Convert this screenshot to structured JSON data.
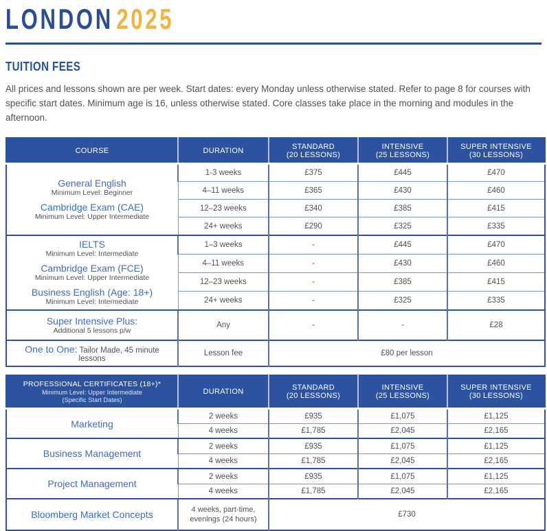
{
  "header": {
    "title_city": "LONDON",
    "title_year": "2025"
  },
  "section": {
    "title": "TUITION FEES",
    "intro": "All prices and lessons shown are per week. Start dates: every Monday unless otherwise stated. Refer to page 8 for courses with specific start dates. Minimum age is 16, unless otherwise stated. Core classes take place in the morning and modules in the afternoon."
  },
  "colors": {
    "navy": "#2d53a0",
    "gold": "#f2b43a",
    "course_blue": "#3c6cc8",
    "body_text": "#53555e"
  },
  "fees_table": {
    "columns": [
      {
        "line1": "COURSE"
      },
      {
        "line1": "DURATION"
      },
      {
        "line1": "STANDARD",
        "line2": "(20 LESSONS)"
      },
      {
        "line1": "INTENSIVE",
        "line2": "(25 LESSONS)"
      },
      {
        "line1": "SUPER INTENSIVE",
        "line2": "(30 LESSONS)"
      }
    ],
    "group1": {
      "courses": [
        {
          "name": "General English",
          "level": "Minimum Level: Beginner"
        },
        {
          "name": "Cambridge Exam (CAE)",
          "level": "Minimum Level: Upper Intermediate"
        }
      ],
      "rows": [
        {
          "duration": "1-3 weeks",
          "standard": "£375",
          "intensive": "£445",
          "super": "£470"
        },
        {
          "duration": "4–11 weeks",
          "standard": "£365",
          "intensive": "£430",
          "super": "£460"
        },
        {
          "duration": "12–23 weeks",
          "standard": "£340",
          "intensive": "£385",
          "super": "£415"
        },
        {
          "duration": "24+ weeks",
          "standard": "£290",
          "intensive": "£325",
          "super": "£335"
        }
      ]
    },
    "group2": {
      "courses": [
        {
          "name": "IELTS",
          "level": "Minimum Level: Intermediate"
        },
        {
          "name": "Cambridge Exam (FCE)",
          "level": "Minimum Level: Upper Intermediate"
        },
        {
          "name": "Business English (Age: 18+)",
          "level": "Minimum Level: Intermediate"
        }
      ],
      "rows": [
        {
          "duration": "1–3 weeks",
          "standard": "-",
          "intensive": "£445",
          "super": "£470"
        },
        {
          "duration": "4–11 weeks",
          "standard": "-",
          "intensive": "£430",
          "super": "£460"
        },
        {
          "duration": "12–23 weeks",
          "standard": "-",
          "intensive": "£385",
          "super": "£415"
        },
        {
          "duration": "24+ weeks",
          "standard": "-",
          "intensive": "£325",
          "super": "£335"
        }
      ]
    },
    "super_intensive_plus": {
      "name": "Super Intensive Plus:",
      "sub": "Additional 5 lessons p/w",
      "duration": "Any",
      "standard": "-",
      "intensive": "-",
      "super": "£28"
    },
    "one_to_one": {
      "name": "One to One:",
      "desc": " Tailor Made, 45 minute lessons",
      "duration": "Lesson fee",
      "price": "£80 per lesson"
    }
  },
  "certificates_table": {
    "header": {
      "title": "PROFESSIONAL CERTIFICATES (18+)*",
      "sub1": "Minimum Level: Upper Intermediate",
      "sub2": "(Specific Start Dates)"
    },
    "columns": [
      {
        "line1": "DURATION"
      },
      {
        "line1": "STANDARD",
        "line2": "(20 LESSONS)"
      },
      {
        "line1": "INTENSIVE",
        "line2": "(25 LESSONS)"
      },
      {
        "line1": "SUPER INTENSIVE",
        "line2": "(30 LESSONS)"
      }
    ],
    "groups": [
      {
        "name": "Marketing",
        "rows": [
          {
            "duration": "2 weeks",
            "standard": "£935",
            "intensive": "£1,075",
            "super": "£1,125"
          },
          {
            "duration": "4 weeks",
            "standard": "£1,785",
            "intensive": "£2,045",
            "super": "£2,165"
          }
        ]
      },
      {
        "name": "Business Management",
        "rows": [
          {
            "duration": "2 weeks",
            "standard": "£935",
            "intensive": "£1,075",
            "super": "£1,125"
          },
          {
            "duration": "4 weeks",
            "standard": "£1,785",
            "intensive": "£2,045",
            "super": "£2,165"
          }
        ]
      },
      {
        "name": "Project Management",
        "rows": [
          {
            "duration": "2 weeks",
            "standard": "£935",
            "intensive": "£1,075",
            "super": "£1,125"
          },
          {
            "duration": "4 weeks",
            "standard": "£1,785",
            "intensive": "£2,045",
            "super": "£2,165"
          }
        ]
      }
    ],
    "bloomberg": {
      "name": "Bloomberg Market Concepts",
      "duration": "4 weeks, part-time, evenings (24 hours)",
      "price": "£730"
    }
  }
}
